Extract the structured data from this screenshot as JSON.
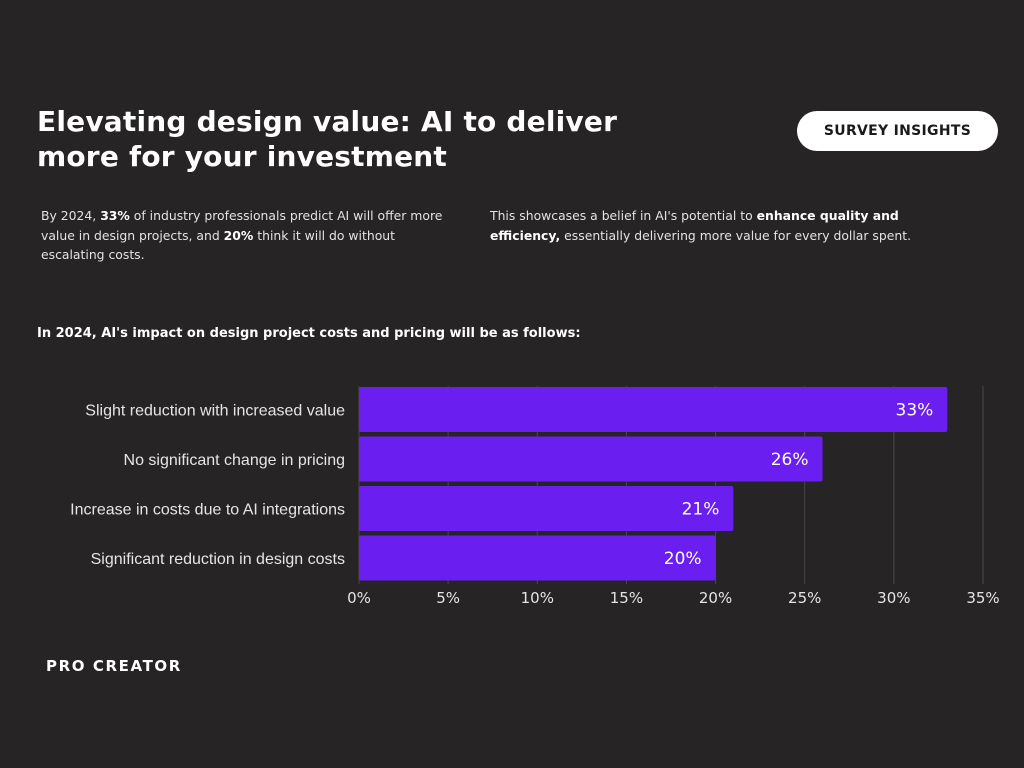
{
  "title": {
    "line1": "Elevating design value: AI to deliver",
    "line2": "more for your investment"
  },
  "badge": "SURVEY INSIGHTS",
  "intro_left": {
    "t1": "By 2024, ",
    "b1": "33%",
    "t2": " of industry professionals predict AI will offer more value in design projects, and ",
    "b2": "20%",
    "t3": " think it will do without escalating costs."
  },
  "intro_right": {
    "t1": "This showcases a belief in AI's potential to ",
    "b1": "enhance quality and efficiency,",
    "t2": " essentially delivering more value for every dollar spent."
  },
  "chart_heading": "In 2024, AI's impact on design project costs and pricing will be as follows:",
  "brand": "PRO CREATOR",
  "colors": {
    "background": "#262425",
    "bar": "#6a1ef0",
    "grid": "#4a4849"
  },
  "chart_data": {
    "type": "bar",
    "orientation": "horizontal",
    "categories": [
      "Slight reduction with increased value",
      "No significant change in pricing",
      "Increase in costs due to AI integrations",
      "Significant reduction in design costs"
    ],
    "values": [
      33,
      26,
      21,
      20
    ],
    "data_labels": [
      "33%",
      "26%",
      "21%",
      "20%"
    ],
    "x_ticks": [
      0,
      5,
      10,
      15,
      20,
      25,
      30,
      35
    ],
    "x_tick_labels": [
      "0%",
      "5%",
      "10%",
      "15%",
      "20%",
      "25%",
      "30%",
      "35%"
    ],
    "xlim": [
      0,
      35
    ],
    "title": "",
    "xlabel": "",
    "ylabel": "",
    "grid": "vertical"
  }
}
